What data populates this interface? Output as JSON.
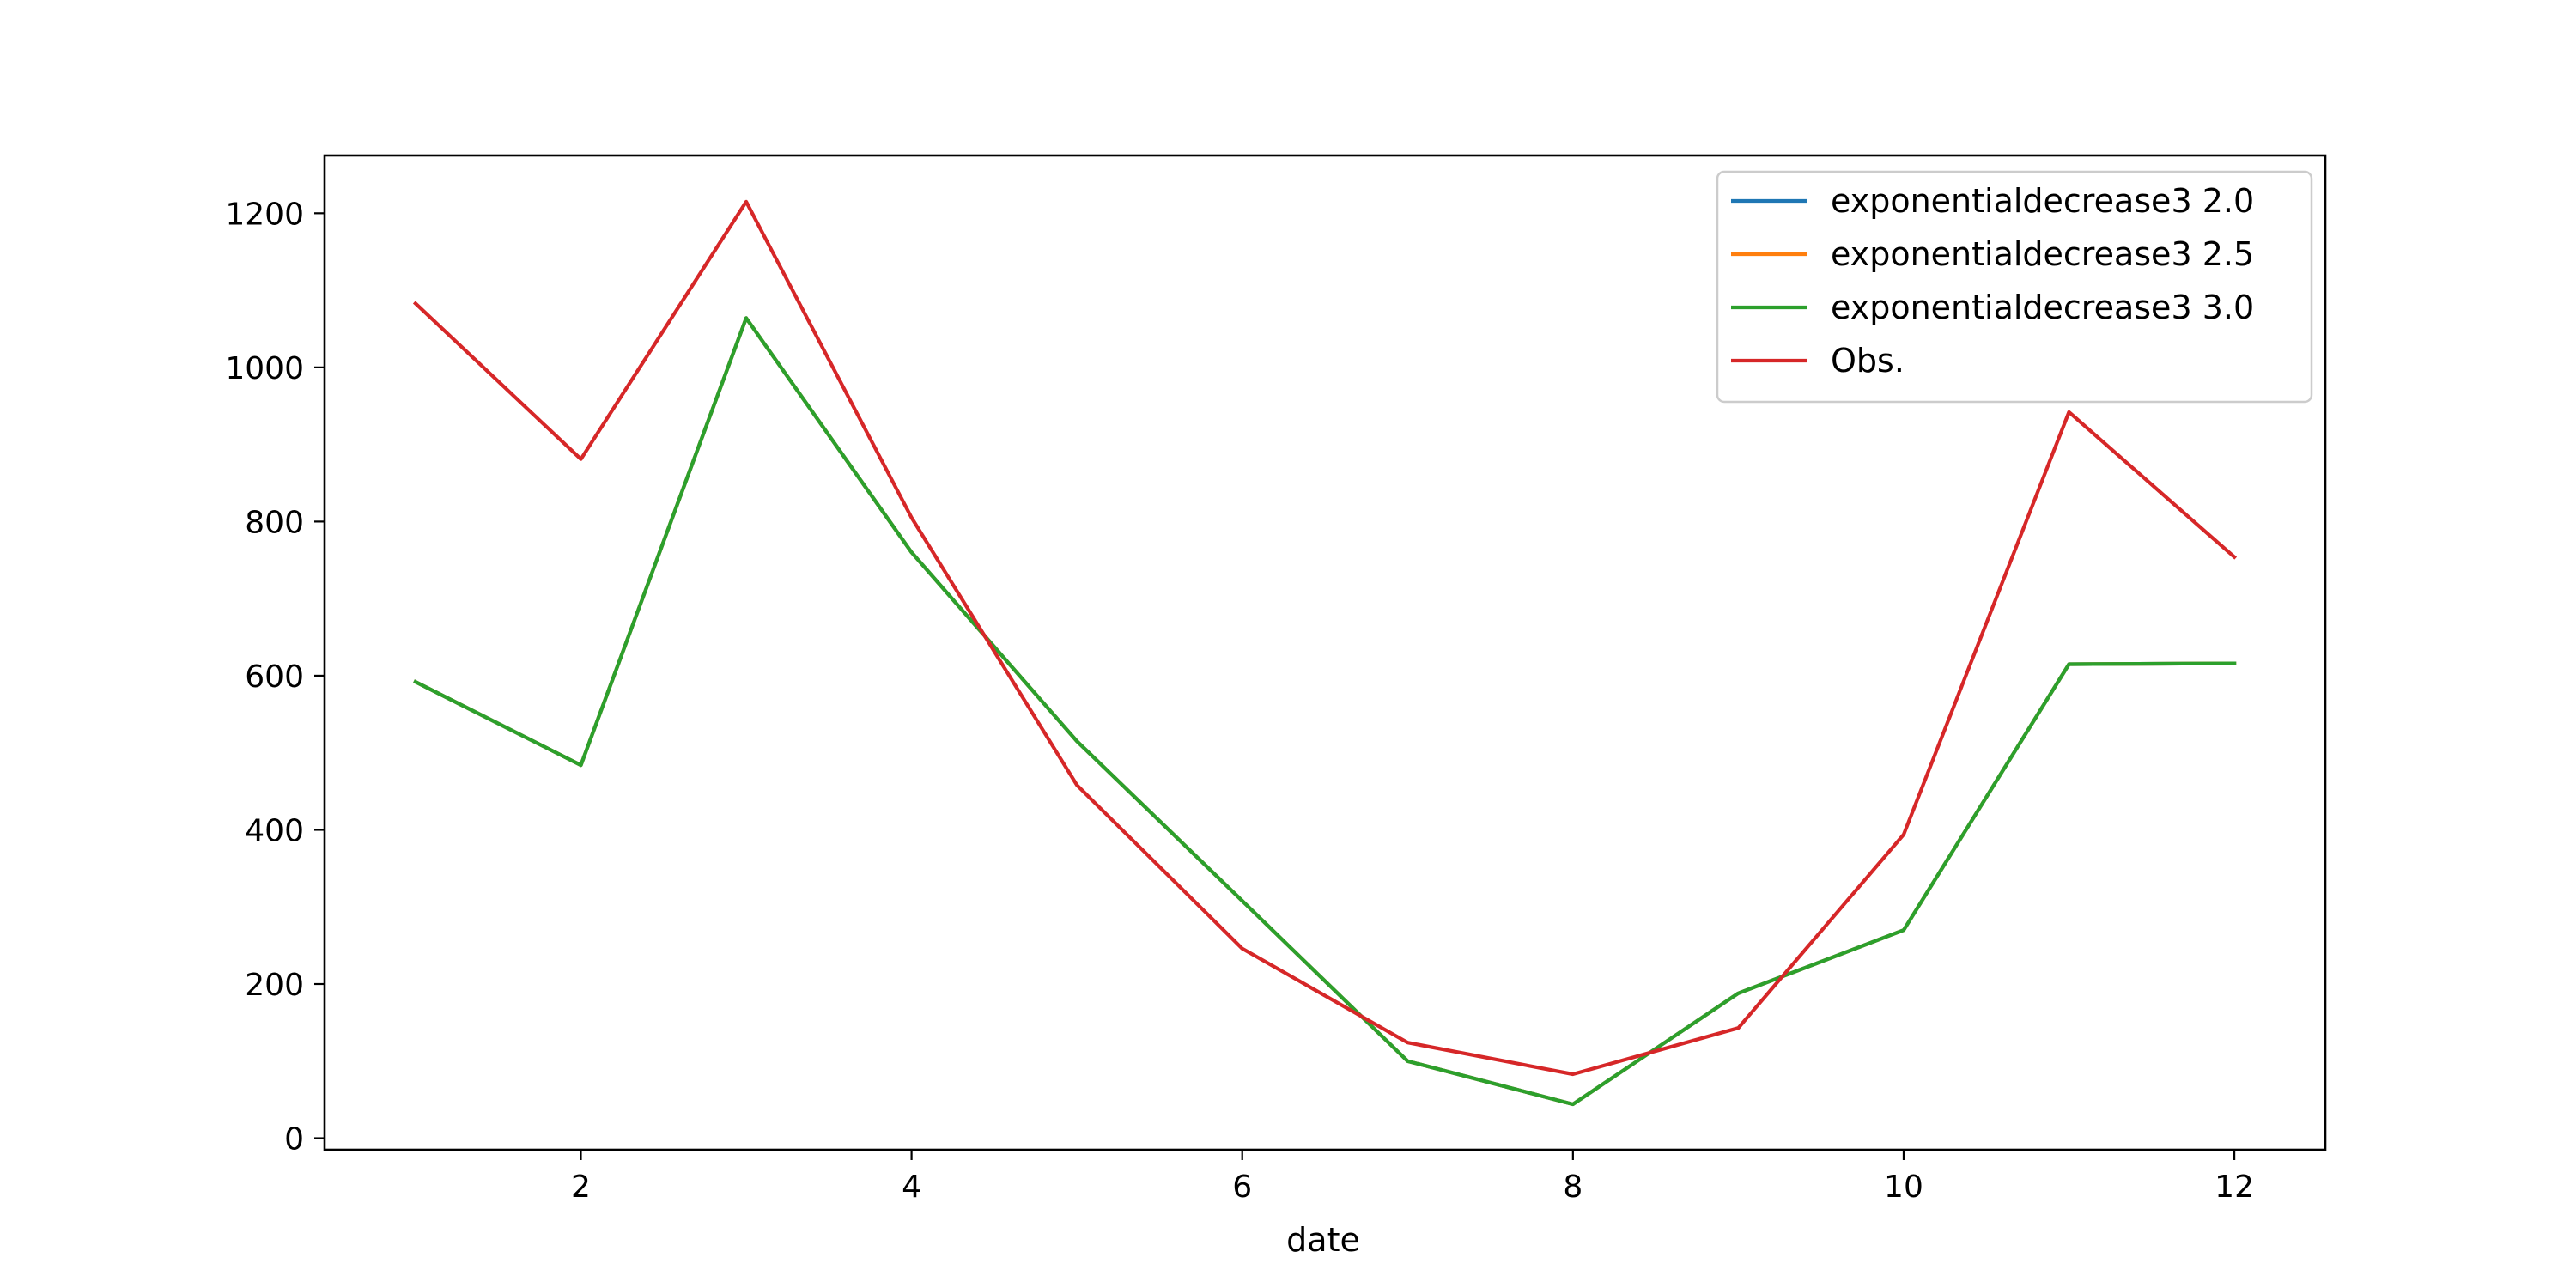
{
  "chart_data": {
    "type": "line",
    "title": "",
    "xlabel": "date",
    "ylabel": "",
    "x": [
      1,
      2,
      3,
      4,
      5,
      6,
      7,
      8,
      9,
      10,
      11,
      12
    ],
    "xlim": [
      0.45,
      12.55
    ],
    "ylim": [
      -15,
      1275
    ],
    "xticks": [
      2,
      4,
      6,
      8,
      10,
      12
    ],
    "yticks": [
      0,
      200,
      400,
      600,
      800,
      1000,
      1200
    ],
    "grid": false,
    "legend_position": "top-right",
    "series": [
      {
        "name": "exponentialdecrease3 2.0",
        "color": "#1f77b4",
        "values": [
          592,
          484,
          1064,
          760,
          515,
          308,
          100,
          44,
          188,
          270,
          615,
          616
        ]
      },
      {
        "name": "exponentialdecrease3 2.5",
        "color": "#ff7f0e",
        "values": [
          592,
          484,
          1064,
          760,
          515,
          308,
          100,
          44,
          188,
          270,
          615,
          616
        ]
      },
      {
        "name": "exponentialdecrease3 3.0",
        "color": "#2ca02c",
        "values": [
          592,
          484,
          1064,
          760,
          515,
          308,
          100,
          44,
          188,
          270,
          615,
          616
        ]
      },
      {
        "name": "Obs.",
        "color": "#d62728",
        "values": [
          1083,
          881,
          1215,
          805,
          458,
          246,
          124,
          83,
          143,
          394,
          942,
          754
        ]
      }
    ]
  }
}
